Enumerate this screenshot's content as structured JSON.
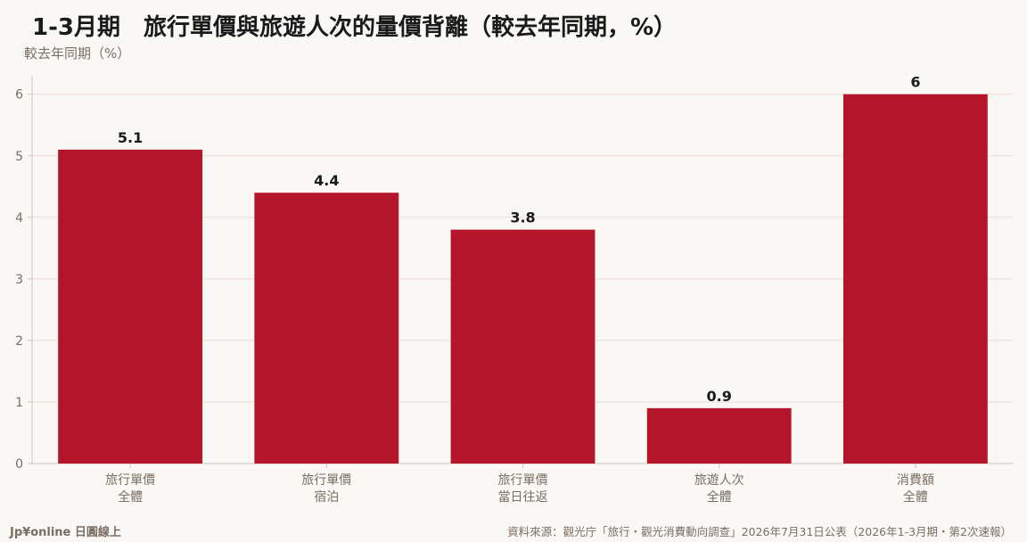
{
  "title": "1-3月期　旅行單價與旅遊人次的量價背離（較去年同期，%）",
  "subtitle": "較去年同期（%）",
  "footer": {
    "brand": "Jp¥online 日圓線上",
    "source": "資料來源：觀光庁「旅行・觀光消費動向調查」2026年7月31日公表（2026年1-3月期・第2次速報）"
  },
  "colors": {
    "bar": "#b5152b",
    "grid": "#ecdcd4",
    "axis": "#cfc4ba",
    "background": "#faf8f4"
  },
  "chart_data": {
    "type": "bar",
    "categories": [
      [
        "旅行單價",
        "全體"
      ],
      [
        "旅行單價",
        "宿泊"
      ],
      [
        "旅行單價",
        "當日往返"
      ],
      [
        "旅遊人次",
        "全體"
      ],
      [
        "消費額",
        "全體"
      ]
    ],
    "values": [
      5.1,
      4.4,
      3.8,
      0.9,
      6
    ],
    "value_labels": [
      "5.1",
      "4.4",
      "3.8",
      "0.9",
      "6"
    ],
    "ylim": [
      0,
      6.3
    ],
    "yticks": [
      0,
      1,
      2,
      3,
      4,
      5,
      6
    ],
    "grid": true,
    "legend": "none"
  }
}
